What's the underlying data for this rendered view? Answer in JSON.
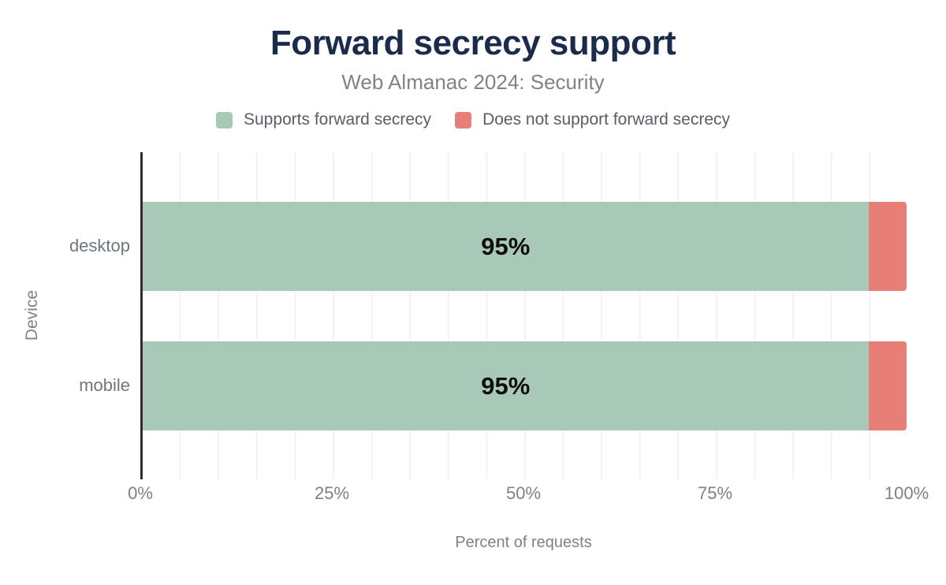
{
  "chart": {
    "title": "Forward secrecy support",
    "subtitle": "Web Almanac 2024: Security",
    "legend": [
      {
        "label": "Supports forward secrecy",
        "color": "#a8c9b7"
      },
      {
        "label": "Does not support forward secrecy",
        "color": "#e77f76"
      }
    ],
    "x_axis_title": "Percent of requests",
    "y_axis_title": "Device",
    "x_ticks": [
      "0%",
      "25%",
      "50%",
      "75%",
      "100%"
    ]
  },
  "chart_data": {
    "type": "bar",
    "orientation": "horizontal",
    "stacked": true,
    "title": "Forward secrecy support",
    "subtitle": "Web Almanac 2024: Security",
    "xlabel": "Percent of requests",
    "ylabel": "Device",
    "xlim": [
      0,
      100
    ],
    "x_tick_labels": [
      "0%",
      "25%",
      "50%",
      "75%",
      "100%"
    ],
    "grid": "vertical-minor-5pct",
    "legend_position": "top-center",
    "categories": [
      "desktop",
      "mobile"
    ],
    "series": [
      {
        "name": "Supports forward secrecy",
        "color": "#a8c9b7",
        "values": [
          95,
          95
        ],
        "data_labels": [
          "95%",
          "95%"
        ]
      },
      {
        "name": "Does not support forward secrecy",
        "color": "#e77f76",
        "values": [
          5,
          5
        ],
        "data_labels": [
          "",
          ""
        ]
      }
    ],
    "colors": {
      "title": "#1b2b4c",
      "subtitle": "#7c838b",
      "axis_line": "#2e2e2e",
      "gridline": "#f2f2f2",
      "tick_label": "#7b828a",
      "category_label": "#6e767e",
      "data_label": "#0e0e0e",
      "background": "#ffffff"
    }
  }
}
